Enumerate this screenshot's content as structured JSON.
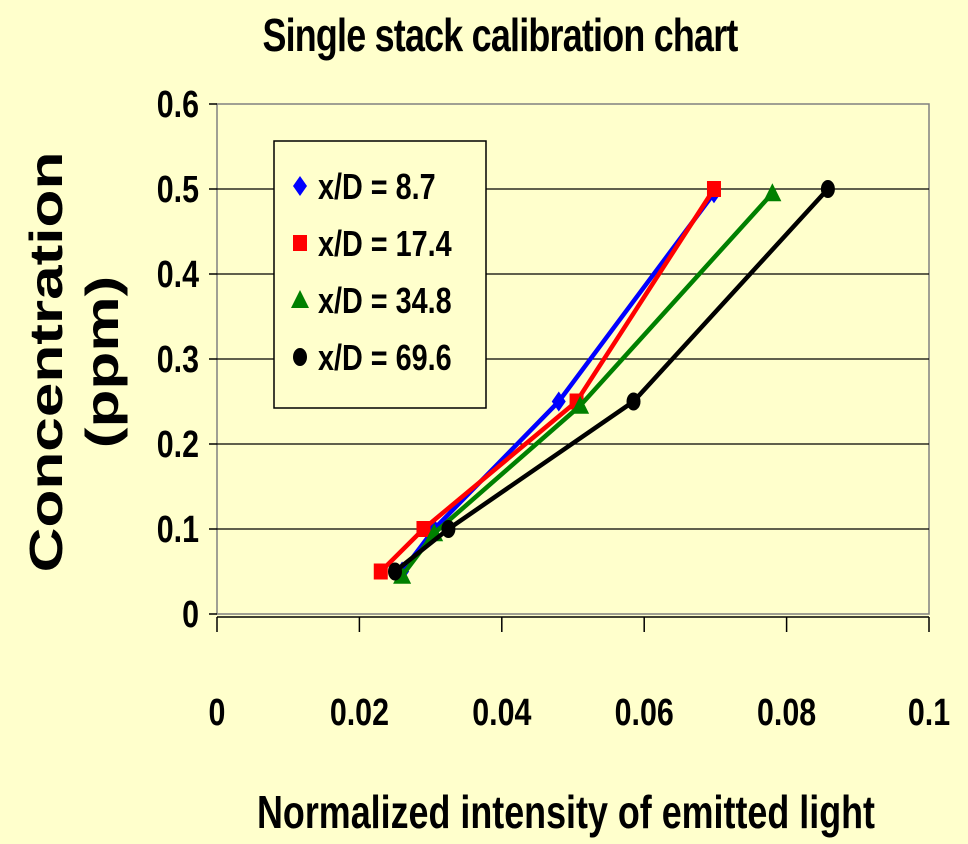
{
  "chart_data": {
    "type": "line",
    "title": "Single stack calibration chart",
    "xlabel": "Normalized intensity of emitted light",
    "ylabel": "Concentration (ppm)",
    "ylabel_line1": "Concentration",
    "ylabel_line2": "(ppm)",
    "xlim": [
      0,
      0.1
    ],
    "ylim": [
      0,
      0.6
    ],
    "x_ticks": [
      0,
      0.02,
      0.04,
      0.06,
      0.08,
      0.1
    ],
    "x_tick_labels": [
      "0",
      "0.02",
      "0.04",
      "0.06",
      "0.08",
      "0.1"
    ],
    "y_ticks": [
      0,
      0.1,
      0.2,
      0.3,
      0.4,
      0.5,
      0.6
    ],
    "y_tick_labels": [
      "0",
      "0.1",
      "0.2",
      "0.3",
      "0.4",
      "0.5",
      "0.6"
    ],
    "grid": "horizontal",
    "legend_position": "top-left",
    "series": [
      {
        "name": "x/D = 8.7",
        "color": "#0000FF",
        "marker": "diamond",
        "points": [
          [
            0.026,
            0.05
          ],
          [
            0.0305,
            0.1
          ],
          [
            0.048,
            0.25
          ],
          [
            0.0698,
            0.495
          ]
        ]
      },
      {
        "name": "x/D = 17.4",
        "color": "#FF0000",
        "marker": "square",
        "points": [
          [
            0.023,
            0.05
          ],
          [
            0.029,
            0.1
          ],
          [
            0.0505,
            0.25
          ],
          [
            0.0698,
            0.5
          ]
        ]
      },
      {
        "name": "x/D = 34.8",
        "color": "#008000",
        "marker": "triangle",
        "points": [
          [
            0.026,
            0.045
          ],
          [
            0.0305,
            0.095
          ],
          [
            0.051,
            0.245
          ],
          [
            0.078,
            0.495
          ]
        ]
      },
      {
        "name": "x/D = 69.6",
        "color": "#000000",
        "marker": "circle",
        "points": [
          [
            0.025,
            0.05
          ],
          [
            0.0325,
            0.1
          ],
          [
            0.0585,
            0.25
          ],
          [
            0.0858,
            0.5
          ]
        ]
      }
    ]
  },
  "colors": {
    "background": "#FFFFCC",
    "plot_border": "#808080",
    "gridline": "#000000"
  }
}
